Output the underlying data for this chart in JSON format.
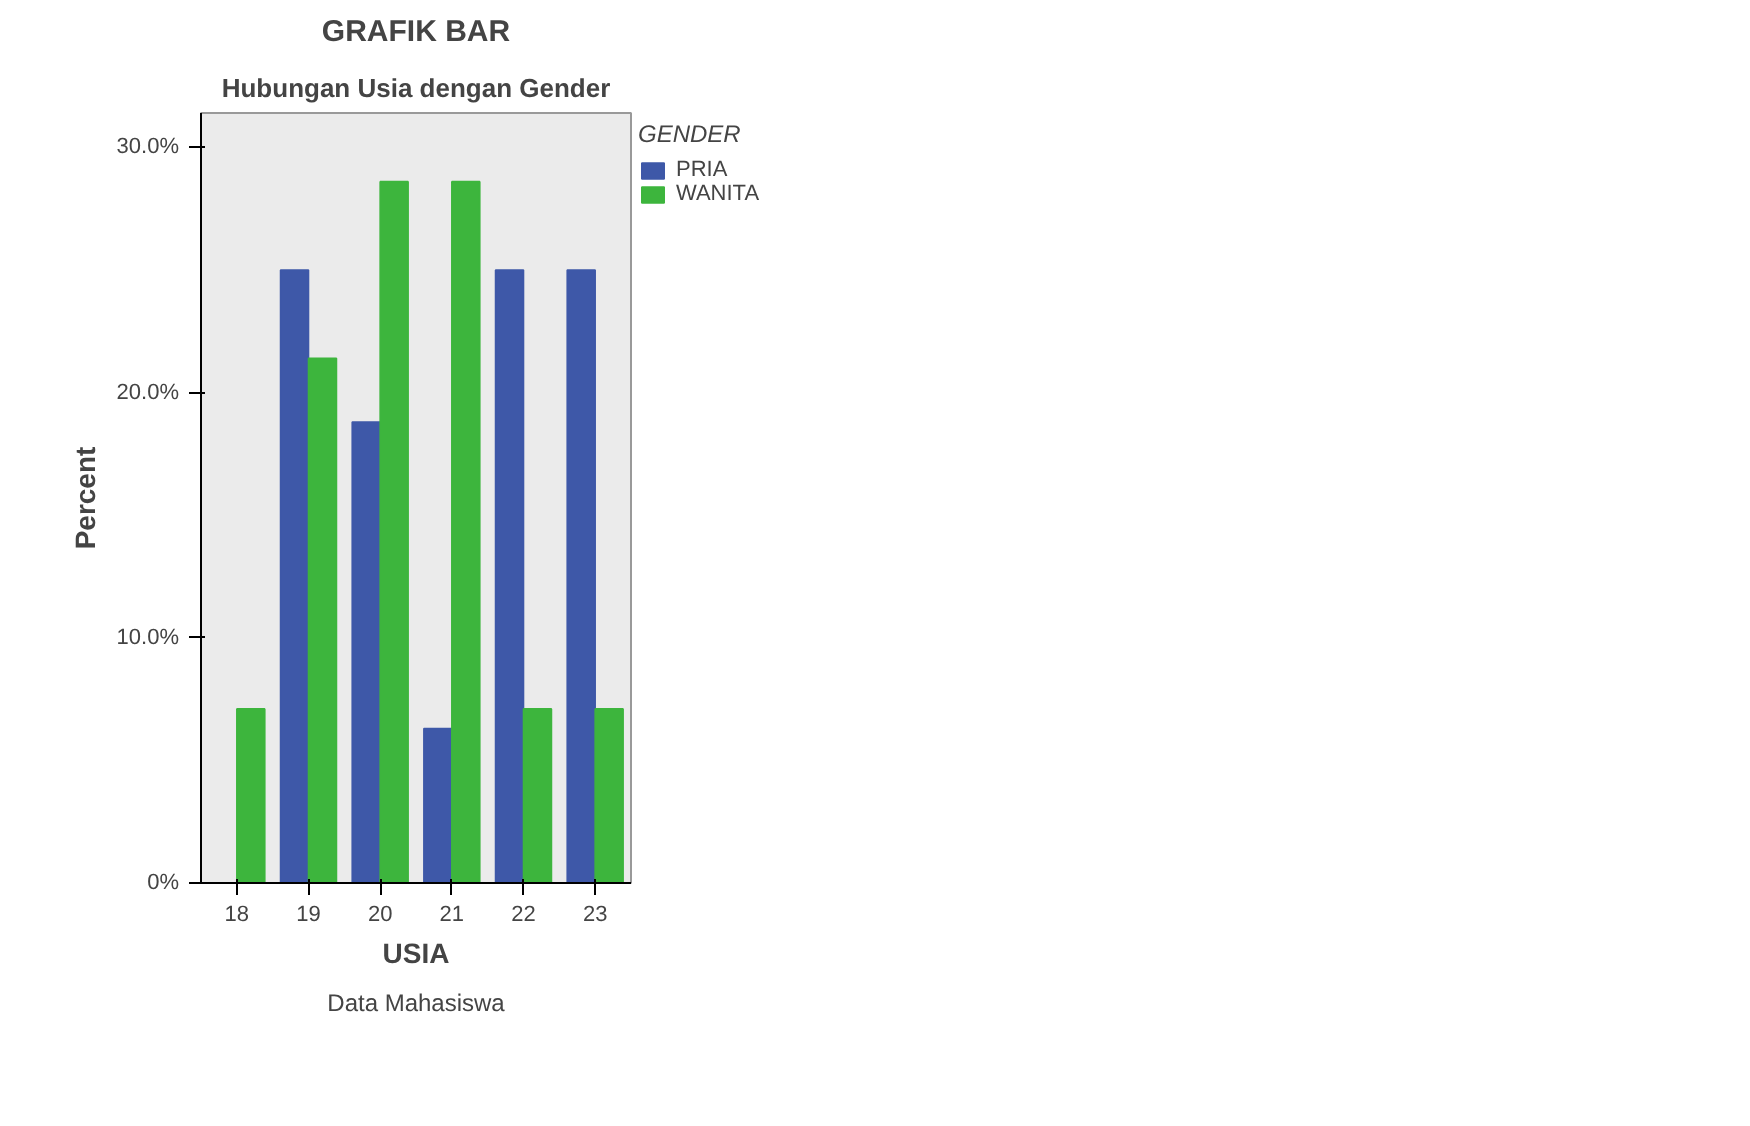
{
  "chart_data": {
    "type": "bar",
    "title": "GRAFIK BAR",
    "subtitle": "Hubungan Usia dengan Gender",
    "xlabel": "USIA",
    "ylabel": "Percent",
    "legend_title": "GENDER",
    "legend": "top right",
    "categories": [
      "18",
      "19",
      "20",
      "21",
      "22",
      "23"
    ],
    "series": [
      {
        "name": "PRIA",
        "color": "#3e58a8",
        "values": [
          0,
          25.0,
          18.8,
          6.3,
          25.0,
          25.0
        ]
      },
      {
        "name": "WANITA",
        "color": "#3db53d",
        "values": [
          7.1,
          21.4,
          28.6,
          28.6,
          7.1,
          7.1
        ]
      }
    ],
    "ylim": [
      0,
      31.4
    ],
    "yticks": [
      {
        "value": 0,
        "label": "0%"
      },
      {
        "value": 10,
        "label": "10.0%"
      },
      {
        "value": 20,
        "label": "20.0%"
      },
      {
        "value": 30,
        "label": "30.0%"
      }
    ],
    "grid": false,
    "annotations": [
      "Data Mahasiswa"
    ]
  }
}
